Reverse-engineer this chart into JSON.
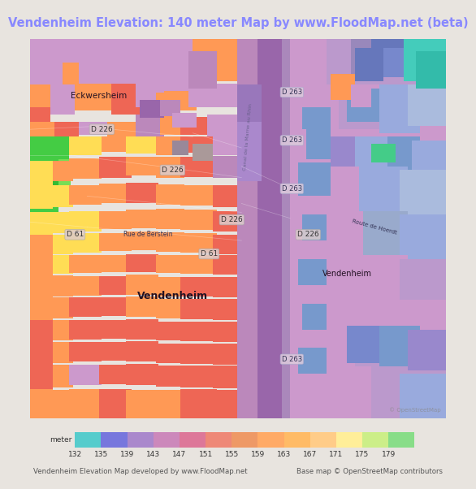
{
  "title": "Vendenheim Elevation: 140 meter Map by www.FloodMap.net (beta)",
  "title_color": "#8888ff",
  "title_fontsize": 10.5,
  "background_color": "#e8e4df",
  "fig_width": 5.12,
  "fig_height": 5.82,
  "legend_labels": [
    "132",
    "135",
    "139",
    "143",
    "147",
    "151",
    "155",
    "159",
    "163",
    "167",
    "171",
    "175",
    "179"
  ],
  "legend_colors": [
    "#56cccc",
    "#7777dd",
    "#aa88cc",
    "#cc88bb",
    "#dd7799",
    "#ee8877",
    "#ee9966",
    "#ffaa66",
    "#ffbb66",
    "#ffcc88",
    "#ffee99",
    "#ccee88",
    "#88dd88"
  ],
  "footer_left": "Vendenheim Elevation Map developed by www.FloodMap.net",
  "footer_right": "Base map © OpenStreetMap contributors",
  "meter_label": "meter",
  "map_bg": "#cc99cc",
  "title_bg": "#ede9e4"
}
